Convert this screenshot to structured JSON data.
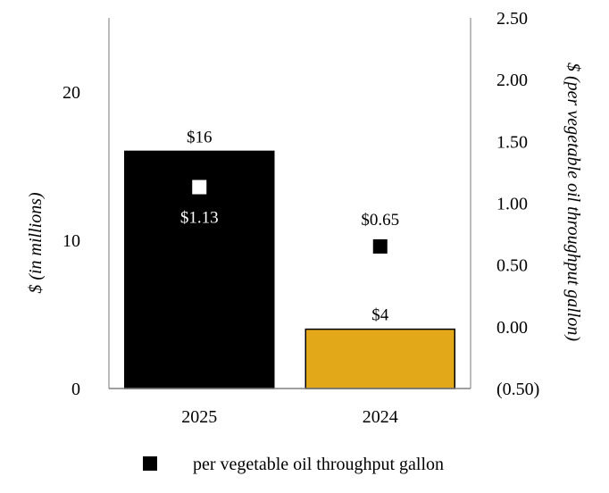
{
  "chart_data": {
    "type": "bar",
    "categories": [
      "2025",
      "2024"
    ],
    "series": [
      {
        "axis": "left",
        "values": [
          16,
          4
        ],
        "data_labels": [
          "$16",
          "$4"
        ],
        "colors": [
          "#000000",
          "#E3A71A"
        ]
      },
      {
        "name": "per vegetable oil throughput gallon",
        "axis": "right",
        "marker": "square",
        "values": [
          1.13,
          0.65
        ],
        "data_labels": [
          "$1.13",
          "$0.65"
        ],
        "marker_colors": [
          "#ffffff",
          "#000000"
        ]
      }
    ],
    "ylabel": "$ (in millions)",
    "ylim": [
      0,
      25
    ],
    "yticks": [
      0,
      10,
      20
    ],
    "ytick_labels": [
      "0",
      "10",
      "20"
    ],
    "y2label": "$ (per vegetable oil throughput gallon)",
    "y2lim": [
      -0.5,
      2.5
    ],
    "y2ticks": [
      -0.5,
      0,
      0.5,
      1.0,
      1.5,
      2.0,
      2.5
    ],
    "y2tick_labels": [
      "(0.50)",
      "0.00",
      "0.50",
      "1.00",
      "1.50",
      "2.00",
      "2.50"
    ],
    "legend": {
      "position": "bottom",
      "entries": [
        "per vegetable oil throughput gallon"
      ]
    },
    "grid": false
  }
}
